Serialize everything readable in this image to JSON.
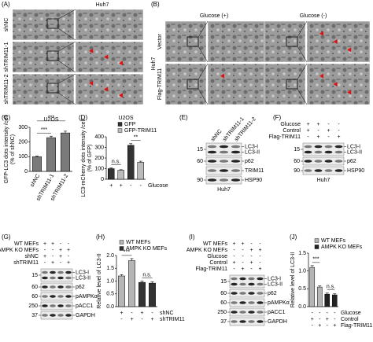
{
  "figure": {
    "A": {
      "panel": "(A)",
      "title": "Huh7",
      "rows": [
        "shNC",
        "shTRIM11-1",
        "shTRIM11-2"
      ]
    },
    "B": {
      "panel": "(B)",
      "cell_line": "Huh7",
      "columns": [
        "Glucose (+)",
        "Glucose (-)"
      ],
      "rows": [
        "Vector",
        "Flag-TRIM11"
      ]
    },
    "E": {
      "panel": "(E)",
      "lanes": [
        "shNC",
        "shTRIM11-1",
        "shTRIM11-2"
      ],
      "rows": [
        {
          "marker": "15",
          "labels": [
            "LC3-I",
            "LC3-II"
          ]
        },
        {
          "marker": "60",
          "labels": [
            "p62"
          ]
        },
        {
          "labels": [
            "TRIM11"
          ]
        },
        {
          "marker": "90",
          "labels": [
            "HSP90"
          ]
        }
      ],
      "cell_line": "Huh7"
    },
    "F": {
      "panel": "(F)",
      "conditions": [
        {
          "name": "Glucose",
          "cells": [
            "+",
            "+",
            "-",
            "-"
          ]
        },
        {
          "name": "Control",
          "cells": [
            "+",
            "-",
            "+",
            "-"
          ]
        },
        {
          "name": "Flag-TRIM11",
          "cells": [
            "-",
            "+",
            "-",
            "+"
          ]
        }
      ],
      "rows": [
        {
          "marker": "15",
          "labels": [
            "LC3-I",
            "LC3-II"
          ]
        },
        {
          "marker": "60",
          "labels": [
            "p62"
          ]
        },
        {
          "marker": "90",
          "labels": [
            "HSP90"
          ]
        }
      ],
      "cell_line": "Huh7"
    },
    "G": {
      "panel": "(G)",
      "conditions": [
        {
          "name": "WT MEFs",
          "cells": [
            "+",
            "+",
            "-",
            "-"
          ]
        },
        {
          "name": "AMPK KO MEFs",
          "cells": [
            "-",
            "-",
            "+",
            "+"
          ]
        },
        {
          "name": "shNC",
          "cells": [
            "+",
            "-",
            "+",
            "-"
          ]
        },
        {
          "name": "shTRIM11",
          "cells": [
            "-",
            "+",
            "-",
            "+"
          ]
        }
      ],
      "rows": [
        {
          "marker": "15",
          "labels": [
            "LC3-I",
            "LC3-II"
          ]
        },
        {
          "marker": "60",
          "labels": [
            "p62"
          ]
        },
        {
          "marker": "60",
          "labels": [
            "pAMPKα"
          ]
        },
        {
          "marker": "250",
          "labels": [
            "pACC1"
          ]
        },
        {
          "marker": "37",
          "labels": [
            "GAPDH"
          ]
        }
      ]
    },
    "I": {
      "panel": "(I)",
      "conditions": [
        {
          "name": "WT MEFs",
          "cells": [
            "+",
            "+",
            "-",
            "-"
          ]
        },
        {
          "name": "AMPK KO MEFs",
          "cells": [
            "-",
            "-",
            "+",
            "+"
          ]
        },
        {
          "name": "Glucose",
          "cells": [
            "-",
            "-",
            "-",
            "-"
          ]
        },
        {
          "name": "Control",
          "cells": [
            "+",
            "-",
            "+",
            "-"
          ]
        },
        {
          "name": "Flag-TRIM11",
          "cells": [
            "-",
            "+",
            "-",
            "+"
          ]
        }
      ],
      "rows": [
        {
          "marker": "15",
          "labels": [
            "LC3-I",
            "LC3-II"
          ]
        },
        {
          "marker": "60",
          "labels": [
            "p62"
          ]
        },
        {
          "marker": "60",
          "labels": [
            "pAMPKα"
          ]
        },
        {
          "marker": "250",
          "labels": [
            "pACC1"
          ]
        },
        {
          "marker": "37",
          "labels": [
            "GAPDH"
          ]
        }
      ]
    }
  },
  "chart_data": [
    {
      "type": "bar",
      "panel": "(C)",
      "title": "U2OS",
      "ylabel": [
        "GFP-LC3 dots intensity /cell",
        "(% of shNC)"
      ],
      "categories": [
        "shNC",
        "shTRIM11-1",
        "shTRIM11-2"
      ],
      "values": [
        100,
        230,
        262
      ],
      "errors": [
        5,
        10,
        12
      ],
      "color": "#7a7a7a",
      "ylim": [
        0,
        300
      ],
      "yticks": [
        0,
        100,
        200,
        300
      ],
      "annotations": [
        "***",
        "***"
      ]
    },
    {
      "type": "bar",
      "panel": "(D)",
      "title": "U2OS",
      "ylabel": [
        "LC3-mCherry dots intensity /cell",
        "(% of GFP)"
      ],
      "categories": [
        "+",
        "-"
      ],
      "xlabel": "Glucose",
      "series": [
        {
          "name": "GFP",
          "color": "#333333",
          "values": [
            100,
            320
          ],
          "errors": [
            6,
            15
          ]
        },
        {
          "name": "GFP-TRIM11",
          "color": "#bbbbbb",
          "values": [
            85,
            160
          ],
          "errors": [
            5,
            10
          ]
        }
      ],
      "ylim": [
        0,
        400
      ],
      "yticks": [
        0,
        100,
        200,
        300,
        400
      ],
      "annotations": [
        "n.s.",
        "**"
      ]
    },
    {
      "type": "bar",
      "panel": "(H)",
      "ylabel": [
        "Relative level of LC3-II"
      ],
      "series": [
        {
          "name": "WT MEFs",
          "color": "#b5b5b5",
          "values": [
            1.2,
            1.8
          ],
          "errors": [
            0.05,
            0.08
          ]
        },
        {
          "name": "AMPK KO MEFs",
          "color": "#333333",
          "values": [
            0.95,
            0.92
          ],
          "errors": [
            0.05,
            0.05
          ]
        }
      ],
      "conditions": [
        {
          "name": "shNC",
          "cells": [
            "+",
            "-",
            "+",
            "-"
          ]
        },
        {
          "name": "shTRIM11",
          "cells": [
            "-",
            "+",
            "-",
            "+"
          ]
        }
      ],
      "ylim": [
        0,
        2.0
      ],
      "yticks": [
        {
          "value": 0,
          "label": "0.0"
        },
        {
          "value": 0.5,
          "label": "0.5"
        },
        {
          "value": 1,
          "label": "1.0"
        },
        {
          "value": 1.5,
          "label": "1.5"
        },
        {
          "value": 2,
          "label": "2.0"
        }
      ],
      "annotations": [
        "***",
        "n.s."
      ]
    },
    {
      "type": "bar",
      "panel": "(J)",
      "ylabel": [
        "Relative level of LC3-II"
      ],
      "series": [
        {
          "name": "WT MEFs",
          "color": "#b5b5b5",
          "values": [
            1.1,
            0.55
          ],
          "errors": [
            0.05,
            0.03
          ]
        },
        {
          "name": "AMPK KO MEFs",
          "color": "#222222",
          "values": [
            0.35,
            0.33
          ],
          "errors": [
            0.03,
            0.03
          ]
        }
      ],
      "conditions": [
        {
          "name": "Glucose",
          "cells": [
            "-",
            "-",
            "-",
            "-"
          ]
        },
        {
          "name": "Control",
          "cells": [
            "+",
            "-",
            "+",
            "-"
          ]
        },
        {
          "name": "Flag-TRIM11",
          "cells": [
            "-",
            "+",
            "-",
            "+"
          ]
        }
      ],
      "ylim": [
        0,
        1.5
      ],
      "yticks": [
        {
          "value": 0,
          "label": "0.0"
        },
        {
          "value": 0.5,
          "label": "0.5"
        },
        {
          "value": 1,
          "label": "1.0"
        },
        {
          "value": 1.5,
          "label": "1.5"
        }
      ],
      "annotations": [
        "***",
        "n.s."
      ]
    }
  ]
}
